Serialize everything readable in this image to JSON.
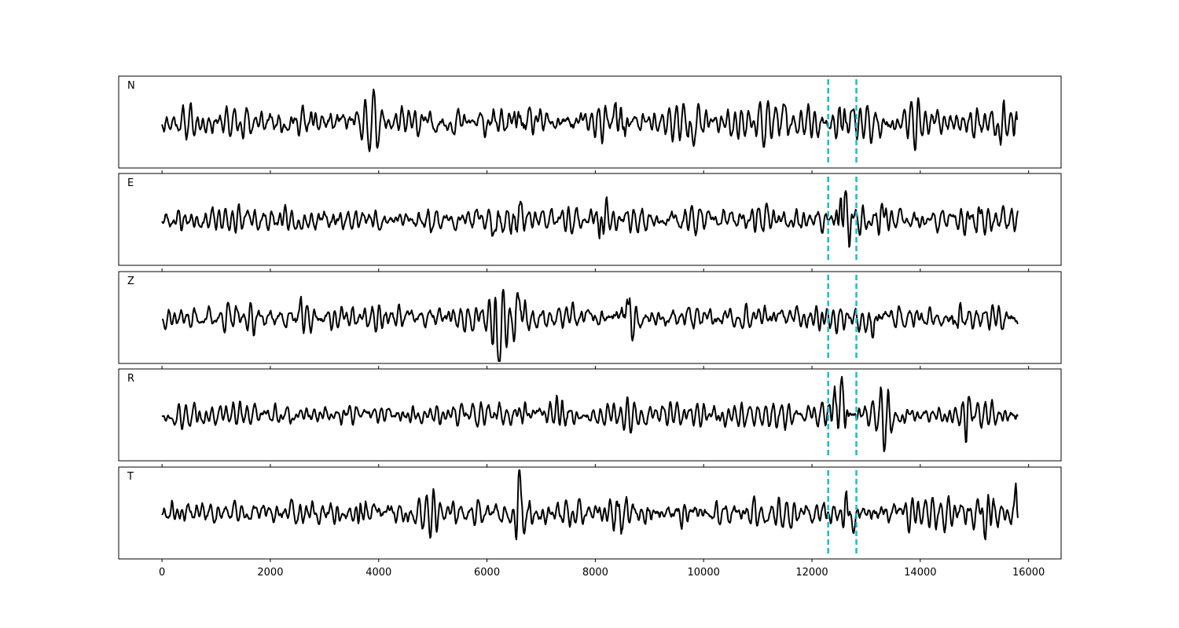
{
  "chart_data": {
    "type": "line",
    "x_range": [
      -800,
      16600
    ],
    "x_ticks": [
      0,
      2000,
      4000,
      6000,
      8000,
      10000,
      12000,
      14000,
      16000
    ],
    "x_tick_labels": [
      "0",
      "2000",
      "4000",
      "6000",
      "8000",
      "10000",
      "12000",
      "14000",
      "16000"
    ],
    "grid": false,
    "legend": "none",
    "sample_count": 15800,
    "markers": [
      {
        "x": 12300,
        "color": "#17becf",
        "style": "dashed"
      },
      {
        "x": 12820,
        "color": "#17becf",
        "style": "dashed"
      }
    ],
    "trace_color": "#000000",
    "panels": [
      {
        "label": "N",
        "seed": 11,
        "noise_amp": 0.34,
        "bursts": [
          [
            3900,
            0.62
          ],
          [
            6600,
            0.72
          ],
          [
            8450,
            0.95
          ],
          [
            9800,
            0.62
          ],
          [
            11450,
            0.6
          ],
          [
            12600,
            0.82
          ],
          [
            15450,
            0.78
          ],
          [
            15790,
            0.72
          ]
        ]
      },
      {
        "label": "E",
        "seed": 23,
        "noise_amp": 0.2,
        "bursts": [
          [
            6200,
            0.45
          ],
          [
            6550,
            0.62
          ],
          [
            8100,
            0.45
          ],
          [
            12580,
            0.98
          ],
          [
            13300,
            0.5
          ],
          [
            15050,
            0.48
          ]
        ]
      },
      {
        "label": "Z",
        "seed": 37,
        "noise_amp": 0.22,
        "bursts": [
          [
            2500,
            0.45
          ],
          [
            6200,
            1.0
          ],
          [
            6600,
            0.62
          ],
          [
            8600,
            0.62
          ],
          [
            13100,
            0.58
          ],
          [
            14650,
            0.45
          ]
        ]
      },
      {
        "label": "R",
        "seed": 49,
        "noise_amp": 0.22,
        "bursts": [
          [
            6200,
            0.45
          ],
          [
            6650,
            0.55
          ],
          [
            7400,
            0.55
          ],
          [
            12500,
            0.92
          ],
          [
            13350,
            0.55
          ],
          [
            14850,
            0.5
          ]
        ]
      },
      {
        "label": "T",
        "seed": 61,
        "noise_amp": 0.3,
        "bursts": [
          [
            3700,
            0.6
          ],
          [
            6650,
            0.95
          ],
          [
            8450,
            0.85
          ],
          [
            12650,
            0.7
          ],
          [
            15250,
            0.72
          ],
          [
            15780,
            0.7
          ]
        ]
      }
    ]
  }
}
